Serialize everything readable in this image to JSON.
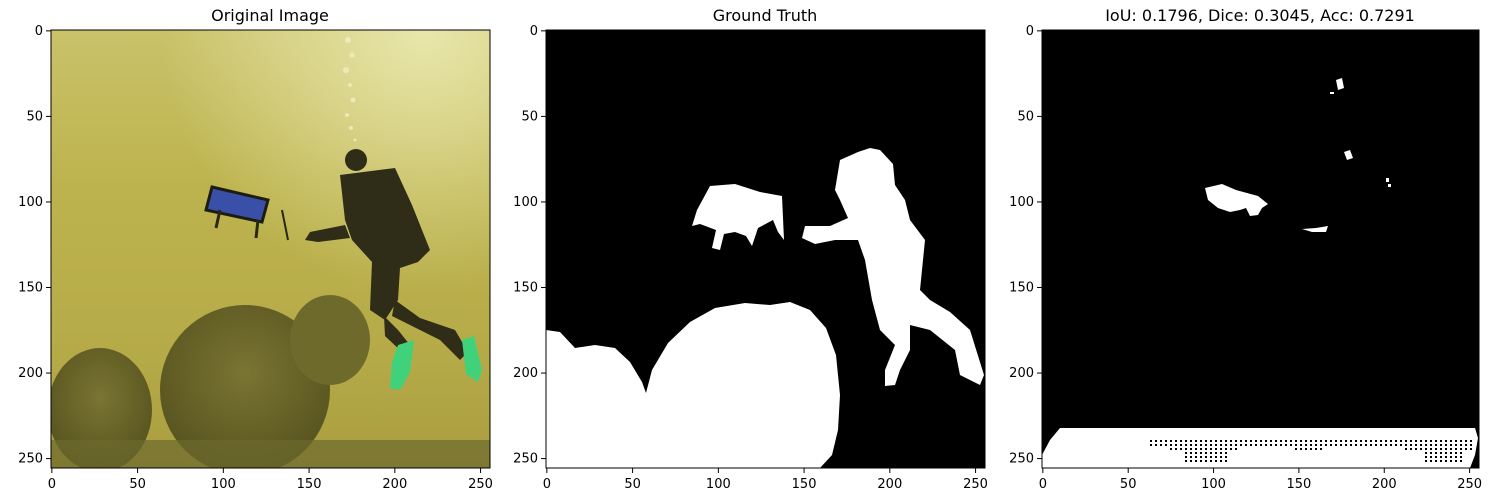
{
  "panels": [
    {
      "title": "Original Image"
    },
    {
      "title": "Ground Truth"
    },
    {
      "title": "IoU: 0.1796, Dice: 0.3045, Acc: 0.7291"
    }
  ],
  "chart_data": [
    {
      "type": "image",
      "title": "Original Image",
      "xlim": [
        0,
        255
      ],
      "ylim": [
        255,
        0
      ],
      "x_ticks": [
        0,
        50,
        100,
        150,
        200,
        250
      ],
      "y_ticks": [
        0,
        50,
        100,
        150,
        200,
        250
      ],
      "colors": {
        "water_top": "#e3e08e",
        "water_mid": "#bcb44c",
        "water_low": "#b3a84a",
        "seabed": "#6d6a2a",
        "diver": "#2f2c18",
        "fins": "#3fd27a",
        "robot_panel": "#3a4fa8"
      }
    },
    {
      "type": "image",
      "title": "Ground Truth",
      "xlim": [
        0,
        255
      ],
      "ylim": [
        255,
        0
      ],
      "x_ticks": [
        0,
        50,
        100,
        150,
        200,
        250
      ],
      "y_ticks": [
        0,
        50,
        100,
        150,
        200,
        250
      ],
      "colors": {
        "background": "#000000",
        "mask": "#ffffff"
      }
    },
    {
      "type": "image",
      "title": "IoU: 0.1796, Dice: 0.3045, Acc: 0.7291",
      "xlim": [
        0,
        255
      ],
      "ylim": [
        255,
        0
      ],
      "x_ticks": [
        0,
        50,
        100,
        150,
        200,
        250
      ],
      "y_ticks": [
        0,
        50,
        100,
        150,
        200,
        250
      ],
      "metrics": {
        "IoU": 0.1796,
        "Dice": 0.3045,
        "Acc": 0.7291
      },
      "colors": {
        "background": "#000000",
        "mask": "#ffffff"
      }
    }
  ]
}
